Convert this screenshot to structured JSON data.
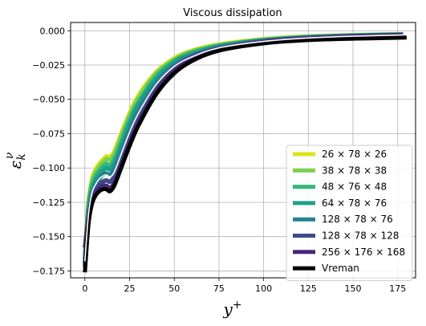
{
  "chart_data": {
    "type": "line",
    "title": "Viscous dissipation",
    "xlabel": "y",
    "xlabel_sup": "+",
    "ylabel": "ε",
    "ylabel_sub": "k",
    "ylabel_sup": "ν",
    "xlim": [
      -8,
      185
    ],
    "ylim": [
      -0.18,
      0.006
    ],
    "xticks": [
      0,
      25,
      50,
      75,
      100,
      125,
      150,
      175
    ],
    "yticks": [
      -0.175,
      -0.15,
      -0.125,
      -0.1,
      -0.075,
      -0.05,
      -0.025,
      0.0
    ],
    "xtick_labels": [
      "0",
      "25",
      "50",
      "75",
      "100",
      "125",
      "150",
      "175"
    ],
    "ytick_labels": [
      "−0.175",
      "−0.150",
      "−0.125",
      "−0.100",
      "−0.075",
      "−0.050",
      "−0.025",
      "0.000"
    ],
    "grid": true,
    "legend_position": "lower-right",
    "series": [
      {
        "name": "26 × 78 × 26",
        "color": "#dde318",
        "x": [
          0,
          2,
          4,
          6,
          8,
          10,
          12,
          14,
          16,
          18,
          20,
          25,
          30,
          40,
          50,
          60,
          75,
          100,
          125,
          150,
          178
        ],
        "y": [
          -0.162,
          -0.125,
          -0.108,
          -0.101,
          -0.097,
          -0.094,
          -0.0915,
          -0.092,
          -0.089,
          -0.083,
          -0.076,
          -0.06,
          -0.047,
          -0.03,
          -0.02,
          -0.0145,
          -0.01,
          -0.0062,
          -0.0042,
          -0.0032,
          -0.0025
        ]
      },
      {
        "name": "38 × 78 × 38",
        "color": "#7ad151",
        "x": [
          0,
          2,
          4,
          6,
          8,
          10,
          12,
          14,
          16,
          18,
          20,
          25,
          30,
          40,
          50,
          60,
          75,
          100,
          125,
          150,
          178
        ],
        "y": [
          -0.164,
          -0.127,
          -0.11,
          -0.103,
          -0.099,
          -0.096,
          -0.0935,
          -0.094,
          -0.091,
          -0.085,
          -0.078,
          -0.062,
          -0.049,
          -0.031,
          -0.021,
          -0.015,
          -0.0105,
          -0.0065,
          -0.0044,
          -0.0033,
          -0.0026
        ]
      },
      {
        "name": "48 × 76 × 48",
        "color": "#35b779",
        "x": [
          0,
          2,
          4,
          6,
          8,
          10,
          12,
          14,
          16,
          18,
          20,
          25,
          30,
          40,
          50,
          60,
          75,
          100,
          125,
          150,
          178
        ],
        "y": [
          -0.166,
          -0.129,
          -0.113,
          -0.106,
          -0.102,
          -0.099,
          -0.097,
          -0.098,
          -0.095,
          -0.089,
          -0.082,
          -0.065,
          -0.052,
          -0.033,
          -0.022,
          -0.016,
          -0.011,
          -0.0068,
          -0.0046,
          -0.0035,
          -0.0027
        ]
      },
      {
        "name": "64 × 78 × 76",
        "color": "#1f9e89",
        "x": [
          0,
          2,
          4,
          6,
          8,
          10,
          12,
          14,
          16,
          18,
          20,
          25,
          30,
          40,
          50,
          60,
          75,
          100,
          125,
          150,
          178
        ],
        "y": [
          -0.168,
          -0.132,
          -0.116,
          -0.109,
          -0.105,
          -0.102,
          -0.1,
          -0.101,
          -0.098,
          -0.092,
          -0.085,
          -0.068,
          -0.054,
          -0.035,
          -0.023,
          -0.017,
          -0.0115,
          -0.0071,
          -0.0048,
          -0.0036,
          -0.0028
        ]
      },
      {
        "name": "128 × 78 × 76",
        "color": "#26828e",
        "x": [
          0,
          2,
          4,
          6,
          8,
          10,
          12,
          14,
          16,
          18,
          20,
          25,
          30,
          40,
          50,
          60,
          75,
          100,
          125,
          150,
          178
        ],
        "y": [
          -0.17,
          -0.135,
          -0.119,
          -0.112,
          -0.108,
          -0.105,
          -0.104,
          -0.105,
          -0.102,
          -0.096,
          -0.089,
          -0.072,
          -0.058,
          -0.038,
          -0.025,
          -0.018,
          -0.012,
          -0.0074,
          -0.005,
          -0.0038,
          -0.0029
        ]
      },
      {
        "name": "128 × 78 × 128",
        "color": "#3e4a89",
        "x": [
          0,
          2,
          4,
          6,
          8,
          10,
          12,
          14,
          16,
          18,
          20,
          25,
          30,
          40,
          50,
          60,
          75,
          100,
          125,
          150,
          178
        ],
        "y": [
          -0.172,
          -0.138,
          -0.122,
          -0.116,
          -0.112,
          -0.11,
          -0.109,
          -0.11,
          -0.107,
          -0.101,
          -0.094,
          -0.077,
          -0.062,
          -0.041,
          -0.027,
          -0.019,
          -0.013,
          -0.0078,
          -0.0053,
          -0.004,
          -0.0031
        ]
      },
      {
        "name": "256 × 176 × 168",
        "color": "#482878",
        "x": [
          0,
          2,
          4,
          6,
          8,
          10,
          12,
          14,
          16,
          18,
          20,
          25,
          30,
          40,
          50,
          60,
          75,
          100,
          125,
          150,
          178
        ],
        "y": [
          -0.158,
          -0.137,
          -0.124,
          -0.118,
          -0.115,
          -0.113,
          -0.113,
          -0.1145,
          -0.112,
          -0.106,
          -0.099,
          -0.082,
          -0.067,
          -0.044,
          -0.029,
          -0.021,
          -0.014,
          -0.0085,
          -0.0058,
          -0.0044,
          -0.0034
        ]
      },
      {
        "name": "Vreman",
        "color": "#000000",
        "x": [
          0,
          2,
          4,
          6,
          8,
          10,
          12,
          14,
          16,
          18,
          20,
          25,
          30,
          40,
          50,
          60,
          75,
          100,
          125,
          150,
          180
        ],
        "y": [
          -0.176,
          -0.141,
          -0.126,
          -0.12,
          -0.117,
          -0.1155,
          -0.1155,
          -0.117,
          -0.114,
          -0.108,
          -0.101,
          -0.084,
          -0.069,
          -0.046,
          -0.031,
          -0.022,
          -0.0145,
          -0.0092,
          -0.0068,
          -0.0058,
          -0.005
        ]
      }
    ],
    "white_curve": {
      "x": [
        0,
        2,
        4,
        6,
        8,
        10,
        12,
        14,
        16,
        18,
        20,
        25,
        30,
        40,
        50,
        60,
        75,
        100,
        125,
        150,
        178
      ],
      "y": [
        -0.168,
        -0.134,
        -0.118,
        -0.112,
        -0.108,
        -0.106,
        -0.105,
        -0.1065,
        -0.104,
        -0.098,
        -0.091,
        -0.074,
        -0.06,
        -0.039,
        -0.026,
        -0.019,
        -0.0125,
        -0.0078,
        -0.0053,
        -0.004,
        -0.0031
      ]
    }
  }
}
